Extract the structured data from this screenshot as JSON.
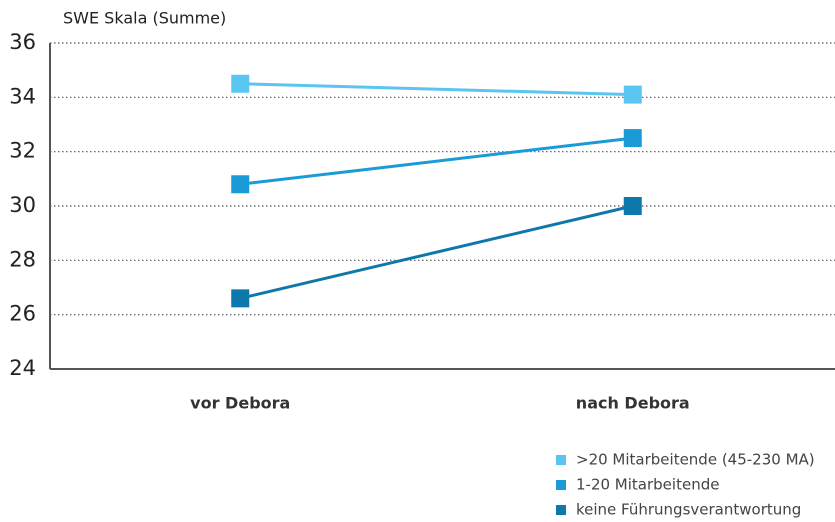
{
  "chart_data": {
    "type": "line",
    "y_axis_label": "SWE Skala (Summe)",
    "categories": [
      "vor Debora",
      "nach Debora"
    ],
    "series": [
      {
        "name": ">20 Mitarbeitende (45-230 MA)",
        "color": "#5bc5f2",
        "values": [
          34.5,
          34.1
        ]
      },
      {
        "name": "1-20 Mitarbeitende",
        "color": "#1b9ad8",
        "values": [
          30.8,
          32.5
        ]
      },
      {
        "name": "keine Führungsverantwortung",
        "color": "#0d78ab",
        "values": [
          26.6,
          30.0
        ]
      }
    ],
    "ylim": [
      24,
      36
    ],
    "yticks": [
      24,
      26,
      28,
      30,
      32,
      34,
      36
    ],
    "grid": true,
    "legend": "bottom-right"
  }
}
